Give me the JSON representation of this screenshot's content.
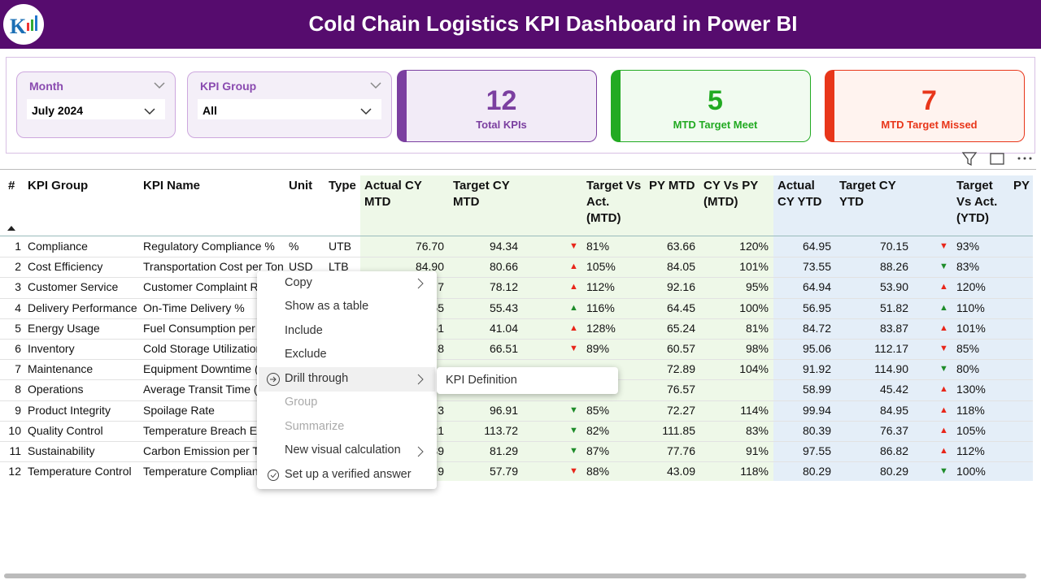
{
  "header": {
    "title": "Cold Chain Logistics KPI Dashboard in Power BI"
  },
  "slicers": [
    {
      "label": "Month",
      "value": "July 2024"
    },
    {
      "label": "KPI Group",
      "value": "All"
    }
  ],
  "cards": [
    {
      "value": 12,
      "label": "Total KPIs",
      "color": "#7b3fa0"
    },
    {
      "value": 5,
      "label": "MTD Target Meet",
      "color": "#22aa22"
    },
    {
      "value": 7,
      "label": "MTD Target Missed",
      "color": "#e8361a"
    }
  ],
  "table": {
    "columns": {
      "n": "#",
      "group": "KPI Group",
      "name": "KPI Name",
      "unit": "Unit",
      "type": "Type",
      "actual_mtd": "Actual CY MTD",
      "target_mtd": "Target CY MTD",
      "tva_mtd": "Target Vs Act. (MTD)",
      "py_mtd": "PY MTD",
      "cy_vs_py_mtd": "CY Vs PY (MTD)",
      "actual_ytd": "Actual CY YTD",
      "target_ytd": "Target CY YTD",
      "tva_ytd": "Target Vs Act. (YTD)",
      "py_ytd": "PY YTD"
    },
    "rows": [
      {
        "n": "1",
        "group": "Compliance",
        "name": "Regulatory Compliance %",
        "unit": "%",
        "type": "UTB",
        "actual_mtd": "76.70",
        "target_mtd": "94.34",
        "arrow_mtd": {
          "glyph": "▼",
          "color": "#e8261a"
        },
        "tva_mtd": "81%",
        "py_mtd": "63.66",
        "cy_vs_py_mtd": "120%",
        "actual_ytd": "64.95",
        "target_ytd": "70.15",
        "arrow_ytd": {
          "glyph": "▼",
          "color": "#e8261a"
        },
        "tva_ytd": "93%"
      },
      {
        "n": "2",
        "group": "Cost Efficiency",
        "name": "Transportation Cost per Ton",
        "unit": "USD",
        "type": "LTB",
        "actual_mtd": "84.90",
        "target_mtd": "80.66",
        "arrow_mtd": {
          "glyph": "▲",
          "color": "#e8261a"
        },
        "tva_mtd": "105%",
        "py_mtd": "84.05",
        "cy_vs_py_mtd": "101%",
        "actual_ytd": "73.55",
        "target_ytd": "88.26",
        "arrow_ytd": {
          "glyph": "▼",
          "color": "#1e8c2a"
        },
        "tva_ytd": "83%"
      },
      {
        "n": "3",
        "group": "Customer Service",
        "name": "Customer Complaint Ra",
        "unit": null,
        "type": null,
        "actual_mtd": "7",
        "target_mtd": "78.12",
        "arrow_mtd": {
          "glyph": "▲",
          "color": "#e8261a"
        },
        "tva_mtd": "112%",
        "py_mtd": "92.16",
        "cy_vs_py_mtd": "95%",
        "actual_ytd": "64.94",
        "target_ytd": "53.90",
        "arrow_ytd": {
          "glyph": "▲",
          "color": "#e8261a"
        },
        "tva_ytd": "120%"
      },
      {
        "n": "4",
        "group": "Delivery Performance",
        "name": "On-Time Delivery %",
        "unit": null,
        "type": null,
        "actual_mtd": "55",
        "target_mtd": "55.43",
        "arrow_mtd": {
          "glyph": "▲",
          "color": "#1e8c2a"
        },
        "tva_mtd": "116%",
        "py_mtd": "64.45",
        "cy_vs_py_mtd": "100%",
        "actual_ytd": "56.95",
        "target_ytd": "51.82",
        "arrow_ytd": {
          "glyph": "▲",
          "color": "#1e8c2a"
        },
        "tva_ytd": "110%"
      },
      {
        "n": "5",
        "group": "Energy Usage",
        "name": "Fuel Consumption per T",
        "unit": null,
        "type": null,
        "actual_mtd": "51",
        "target_mtd": "41.04",
        "arrow_mtd": {
          "glyph": "▲",
          "color": "#e8261a"
        },
        "tva_mtd": "128%",
        "py_mtd": "65.24",
        "cy_vs_py_mtd": "81%",
        "actual_ytd": "84.72",
        "target_ytd": "83.87",
        "arrow_ytd": {
          "glyph": "▲",
          "color": "#e8261a"
        },
        "tva_ytd": "101%"
      },
      {
        "n": "6",
        "group": "Inventory",
        "name": "Cold Storage Utilization",
        "unit": null,
        "type": null,
        "actual_mtd": "8",
        "target_mtd": "66.51",
        "arrow_mtd": {
          "glyph": "▼",
          "color": "#e8261a"
        },
        "tva_mtd": "89%",
        "py_mtd": "60.57",
        "cy_vs_py_mtd": "98%",
        "actual_ytd": "95.06",
        "target_ytd": "112.17",
        "arrow_ytd": {
          "glyph": "▼",
          "color": "#e8261a"
        },
        "tva_ytd": "85%"
      },
      {
        "n": "7",
        "group": "Maintenance",
        "name": "Equipment Downtime (",
        "unit": null,
        "type": null,
        "actual_mtd": null,
        "target_mtd": null,
        "arrow_mtd": null,
        "tva_mtd": null,
        "py_mtd": "72.89",
        "cy_vs_py_mtd": "104%",
        "actual_ytd": "91.92",
        "target_ytd": "114.90",
        "arrow_ytd": {
          "glyph": "▼",
          "color": "#1e8c2a"
        },
        "tva_ytd": "80%"
      },
      {
        "n": "8",
        "group": "Operations",
        "name": "Average Transit Time (h",
        "unit": null,
        "type": null,
        "actual_mtd": null,
        "target_mtd": null,
        "arrow_mtd": null,
        "tva_mtd": null,
        "py_mtd": "76.57",
        "cy_vs_py_mtd": null,
        "actual_ytd": "58.99",
        "target_ytd": "45.42",
        "arrow_ytd": {
          "glyph": "▲",
          "color": "#e8261a"
        },
        "tva_ytd": "130%"
      },
      {
        "n": "9",
        "group": "Product Integrity",
        "name": "Spoilage Rate",
        "unit": null,
        "type": null,
        "actual_mtd": "3",
        "target_mtd": "96.91",
        "arrow_mtd": {
          "glyph": "▼",
          "color": "#1e8c2a"
        },
        "tva_mtd": "85%",
        "py_mtd": "72.27",
        "cy_vs_py_mtd": "114%",
        "actual_ytd": "99.94",
        "target_ytd": "84.95",
        "arrow_ytd": {
          "glyph": "▲",
          "color": "#e8261a"
        },
        "tva_ytd": "118%"
      },
      {
        "n": "10",
        "group": "Quality Control",
        "name": "Temperature Breach Ev",
        "unit": null,
        "type": null,
        "actual_mtd": "21",
        "target_mtd": "113.72",
        "arrow_mtd": {
          "glyph": "▼",
          "color": "#1e8c2a"
        },
        "tva_mtd": "82%",
        "py_mtd": "111.85",
        "cy_vs_py_mtd": "83%",
        "actual_ytd": "80.39",
        "target_ytd": "76.37",
        "arrow_ytd": {
          "glyph": "▲",
          "color": "#e8261a"
        },
        "tva_ytd": "105%"
      },
      {
        "n": "11",
        "group": "Sustainability",
        "name": "Carbon Emission per Tr",
        "unit": null,
        "type": null,
        "actual_mtd": "39",
        "target_mtd": "81.29",
        "arrow_mtd": {
          "glyph": "▼",
          "color": "#1e8c2a"
        },
        "tva_mtd": "87%",
        "py_mtd": "77.76",
        "cy_vs_py_mtd": "91%",
        "actual_ytd": "97.55",
        "target_ytd": "86.82",
        "arrow_ytd": {
          "glyph": "▲",
          "color": "#e8261a"
        },
        "tva_ytd": "112%"
      },
      {
        "n": "12",
        "group": "Temperature Control",
        "name": "Temperature Complian",
        "unit": null,
        "type": null,
        "actual_mtd": "9",
        "target_mtd": "57.79",
        "arrow_mtd": {
          "glyph": "▼",
          "color": "#e8261a"
        },
        "tva_mtd": "88%",
        "py_mtd": "43.09",
        "cy_vs_py_mtd": "118%",
        "actual_ytd": "80.29",
        "target_ytd": "80.29",
        "arrow_ytd": {
          "glyph": "▼",
          "color": "#1e8c2a"
        },
        "tva_ytd": "100%"
      }
    ]
  },
  "context_menu": {
    "items": [
      "Copy",
      "Show as a table",
      "Include",
      "Exclude",
      "Drill through",
      "Group",
      "Summarize",
      "New visual calculation",
      "Set up a verified answer"
    ],
    "submenu": [
      "KPI Definition"
    ]
  }
}
